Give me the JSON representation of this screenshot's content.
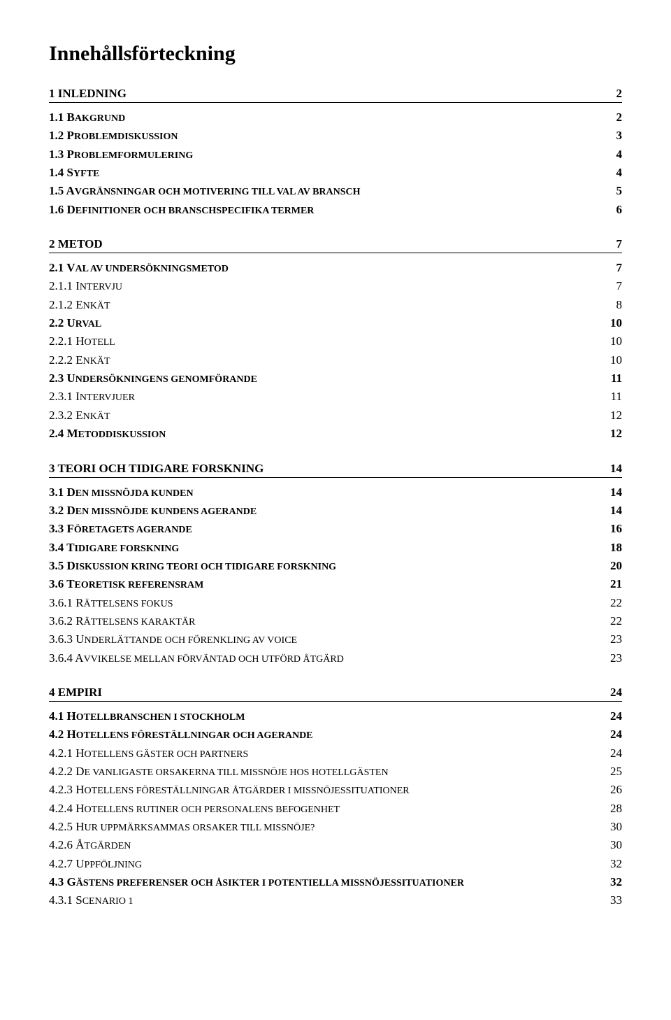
{
  "title": "Innehållsförteckning",
  "sections": [
    {
      "heading": {
        "label": "1 INLEDNING",
        "page": "2"
      },
      "entries": [
        {
          "label_prefix": "1.1 B",
          "label_rest": "AKGRUND",
          "page": "2",
          "bold": true
        },
        {
          "label_prefix": "1.2 P",
          "label_rest": "ROBLEMDISKUSSION",
          "page": "3",
          "bold": true
        },
        {
          "label_prefix": "1.3 P",
          "label_rest": "ROBLEMFORMULERING",
          "page": "4",
          "bold": true
        },
        {
          "label_prefix": "1.4 S",
          "label_rest": "YFTE",
          "page": "4",
          "bold": true
        },
        {
          "label_prefix": "1.5 A",
          "label_rest": "VGRÄNSNINGAR OCH MOTIVERING TILL VAL AV BRANSCH",
          "page": "5",
          "bold": true
        },
        {
          "label_prefix": "1.6 D",
          "label_rest": "EFINITIONER OCH BRANSCHSPECIFIKA TERMER",
          "page": "6",
          "bold": true
        }
      ]
    },
    {
      "heading": {
        "label": "2 METOD",
        "page": "7"
      },
      "entries": [
        {
          "label_prefix": "2.1 V",
          "label_rest": "AL AV UNDERSÖKNINGSMETOD",
          "page": "7",
          "bold": true
        },
        {
          "label_prefix": "2.1.1 I",
          "label_rest": "NTERVJU",
          "page": "7",
          "bold": false
        },
        {
          "label_prefix": "2.1.2 E",
          "label_rest": "NKÄT",
          "page": "8",
          "bold": false
        },
        {
          "label_prefix": "2.2 U",
          "label_rest": "RVAL",
          "page": "10",
          "bold": true
        },
        {
          "label_prefix": "2.2.1 H",
          "label_rest": "OTELL",
          "page": "10",
          "bold": false
        },
        {
          "label_prefix": "2.2.2 E",
          "label_rest": "NKÄT",
          "page": "10",
          "bold": false
        },
        {
          "label_prefix": "2.3 U",
          "label_rest": "NDERSÖKNINGENS GENOMFÖRANDE",
          "page": "11",
          "bold": true
        },
        {
          "label_prefix": "2.3.1 I",
          "label_rest": "NTERVJUER",
          "page": "11",
          "bold": false
        },
        {
          "label_prefix": "2.3.2 E",
          "label_rest": "NKÄT",
          "page": "12",
          "bold": false
        },
        {
          "label_prefix": "2.4 M",
          "label_rest": "ETODDISKUSSION",
          "page": "12",
          "bold": true
        }
      ]
    },
    {
      "heading": {
        "label": "3 TEORI OCH TIDIGARE FORSKNING",
        "page": "14"
      },
      "entries": [
        {
          "label_prefix": "3.1 D",
          "label_rest": "EN MISSNÖJDA KUNDEN",
          "page": "14",
          "bold": true
        },
        {
          "label_prefix": "3.2 D",
          "label_rest": "EN MISSNÖJDE KUNDENS AGERANDE",
          "page": "14",
          "bold": true
        },
        {
          "label_prefix": "3.3 F",
          "label_rest": "ÖRETAGETS AGERANDE",
          "page": "16",
          "bold": true
        },
        {
          "label_prefix": "3.4 T",
          "label_rest": "IDIGARE FORSKNING",
          "page": "18",
          "bold": true
        },
        {
          "label_prefix": "3.5 D",
          "label_rest": "ISKUSSION KRING TEORI OCH TIDIGARE FORSKNING",
          "page": "20",
          "bold": true
        },
        {
          "label_prefix": "3.6 T",
          "label_rest": "EORETISK REFERENSRAM",
          "page": "21",
          "bold": true
        },
        {
          "label_prefix": "3.6.1 R",
          "label_rest": "ÄTTELSENS FOKUS",
          "page": "22",
          "bold": false
        },
        {
          "label_prefix": "3.6.2 R",
          "label_rest": "ÄTTELSENS KARAKTÄR",
          "page": "22",
          "bold": false
        },
        {
          "label_prefix": "3.6.3 U",
          "label_rest": "NDERLÄTTANDE OCH FÖRENKLING AV VOICE",
          "page": "23",
          "bold": false
        },
        {
          "label_prefix": "3.6.4 A",
          "label_rest": "VVIKELSE MELLAN FÖRVÄNTAD OCH UTFÖRD ÅTGÄRD",
          "page": "23",
          "bold": false
        }
      ]
    },
    {
      "heading": {
        "label": "4 EMPIRI",
        "page": "24"
      },
      "entries": [
        {
          "label_prefix": "4.1 H",
          "label_rest": "OTELLBRANSCHEN I STOCKHOLM",
          "page": "24",
          "bold": true
        },
        {
          "label_prefix": "4.2 H",
          "label_rest": "OTELLENS FÖRESTÄLLNINGAR OCH AGERANDE",
          "page": "24",
          "bold": true
        },
        {
          "label_prefix": "4.2.1 H",
          "label_rest": "OTELLENS GÄSTER OCH PARTNERS",
          "page": "24",
          "bold": false
        },
        {
          "label_prefix": "4.2.2 D",
          "label_rest": "E VANLIGASTE ORSAKERNA TILL MISSNÖJE HOS HOTELLGÄSTEN",
          "page": "25",
          "bold": false
        },
        {
          "label_prefix": "4.2.3 H",
          "label_rest": "OTELLENS FÖRESTÄLLNINGAR ÅTGÄRDER I MISSNÖJESSITUATIONER",
          "page": "26",
          "bold": false
        },
        {
          "label_prefix": "4.2.4 H",
          "label_rest": "OTELLENS RUTINER OCH PERSONALENS BEFOGENHET",
          "page": "28",
          "bold": false
        },
        {
          "label_prefix": "4.2.5 H",
          "label_rest": "UR UPPMÄRKSAMMAS ORSAKER TILL MISSNÖJE?",
          "page": "30",
          "bold": false
        },
        {
          "label_prefix": "4.2.6 Å",
          "label_rest": "TGÄRDEN",
          "page": "30",
          "bold": false
        },
        {
          "label_prefix": "4.2.7 U",
          "label_rest": "PPFÖLJNING",
          "page": "32",
          "bold": false
        },
        {
          "label_prefix": "4.3 G",
          "label_rest": "ÄSTENS PREFERENSER OCH ÅSIKTER I POTENTIELLA MISSNÖJESSITUATIONER",
          "page": "32",
          "bold": true
        },
        {
          "label_prefix": "4.3.1 S",
          "label_rest": "CENARIO 1",
          "page": "33",
          "bold": false
        }
      ]
    }
  ],
  "style": {
    "title_fontsize": 30,
    "body_fontsize": 17,
    "smallcaps_fontsize": 14,
    "text_color": "#000000",
    "background_color": "#ffffff"
  }
}
